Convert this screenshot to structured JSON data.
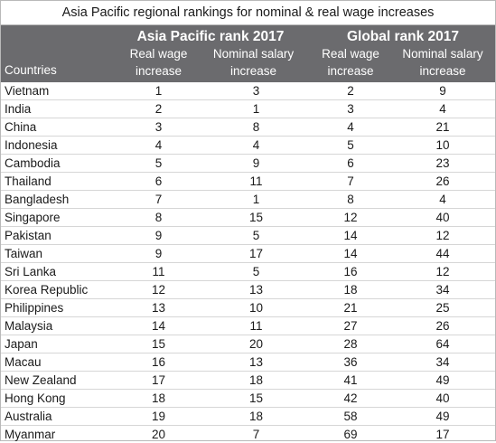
{
  "title": "Asia Pacific regional rankings for nominal & real wage increases",
  "header": {
    "group1": "Asia Pacific rank 2017",
    "group2": "Global rank 2017",
    "countries": "Countries",
    "col_real": "Real wage\nincrease",
    "col_nominal": "Nominal salary\nincrease"
  },
  "rows": [
    {
      "country": "Vietnam",
      "ap_real": "1",
      "ap_nominal": "3",
      "gl_real": "2",
      "gl_nominal": "9"
    },
    {
      "country": "India",
      "ap_real": "2",
      "ap_nominal": "1",
      "gl_real": "3",
      "gl_nominal": "4"
    },
    {
      "country": "China",
      "ap_real": "3",
      "ap_nominal": "8",
      "gl_real": "4",
      "gl_nominal": "21"
    },
    {
      "country": "Indonesia",
      "ap_real": "4",
      "ap_nominal": "4",
      "gl_real": "5",
      "gl_nominal": "10"
    },
    {
      "country": "Cambodia",
      "ap_real": "5",
      "ap_nominal": "9",
      "gl_real": "6",
      "gl_nominal": "23"
    },
    {
      "country": "Thailand",
      "ap_real": "6",
      "ap_nominal": "11",
      "gl_real": "7",
      "gl_nominal": "26"
    },
    {
      "country": "Bangladesh",
      "ap_real": "7",
      "ap_nominal": "1",
      "gl_real": "8",
      "gl_nominal": "4"
    },
    {
      "country": "Singapore",
      "ap_real": "8",
      "ap_nominal": "15",
      "gl_real": "12",
      "gl_nominal": "40"
    },
    {
      "country": "Pakistan",
      "ap_real": "9",
      "ap_nominal": "5",
      "gl_real": "14",
      "gl_nominal": "12"
    },
    {
      "country": "Taiwan",
      "ap_real": "9",
      "ap_nominal": "17",
      "gl_real": "14",
      "gl_nominal": "44"
    },
    {
      "country": "Sri Lanka",
      "ap_real": "11",
      "ap_nominal": "5",
      "gl_real": "16",
      "gl_nominal": "12"
    },
    {
      "country": "Korea Republic",
      "ap_real": "12",
      "ap_nominal": "13",
      "gl_real": "18",
      "gl_nominal": "34"
    },
    {
      "country": "Philippines",
      "ap_real": "13",
      "ap_nominal": "10",
      "gl_real": "21",
      "gl_nominal": "25"
    },
    {
      "country": "Malaysia",
      "ap_real": "14",
      "ap_nominal": "11",
      "gl_real": "27",
      "gl_nominal": "26"
    },
    {
      "country": "Japan",
      "ap_real": "15",
      "ap_nominal": "20",
      "gl_real": "28",
      "gl_nominal": "64"
    },
    {
      "country": "Macau",
      "ap_real": "16",
      "ap_nominal": "13",
      "gl_real": "36",
      "gl_nominal": "34"
    },
    {
      "country": "New Zealand",
      "ap_real": "17",
      "ap_nominal": "18",
      "gl_real": "41",
      "gl_nominal": "49"
    },
    {
      "country": "Hong Kong",
      "ap_real": "18",
      "ap_nominal": "15",
      "gl_real": "42",
      "gl_nominal": "40"
    },
    {
      "country": "Australia",
      "ap_real": "19",
      "ap_nominal": "18",
      "gl_real": "58",
      "gl_nominal": "49"
    },
    {
      "country": "Myanmar",
      "ap_real": "20",
      "ap_nominal": "7",
      "gl_real": "69",
      "gl_nominal": "17"
    }
  ],
  "colors": {
    "header_bg": "#6b6b6e",
    "header_text": "#ffffff",
    "row_rule": "#d6d6d6"
  }
}
